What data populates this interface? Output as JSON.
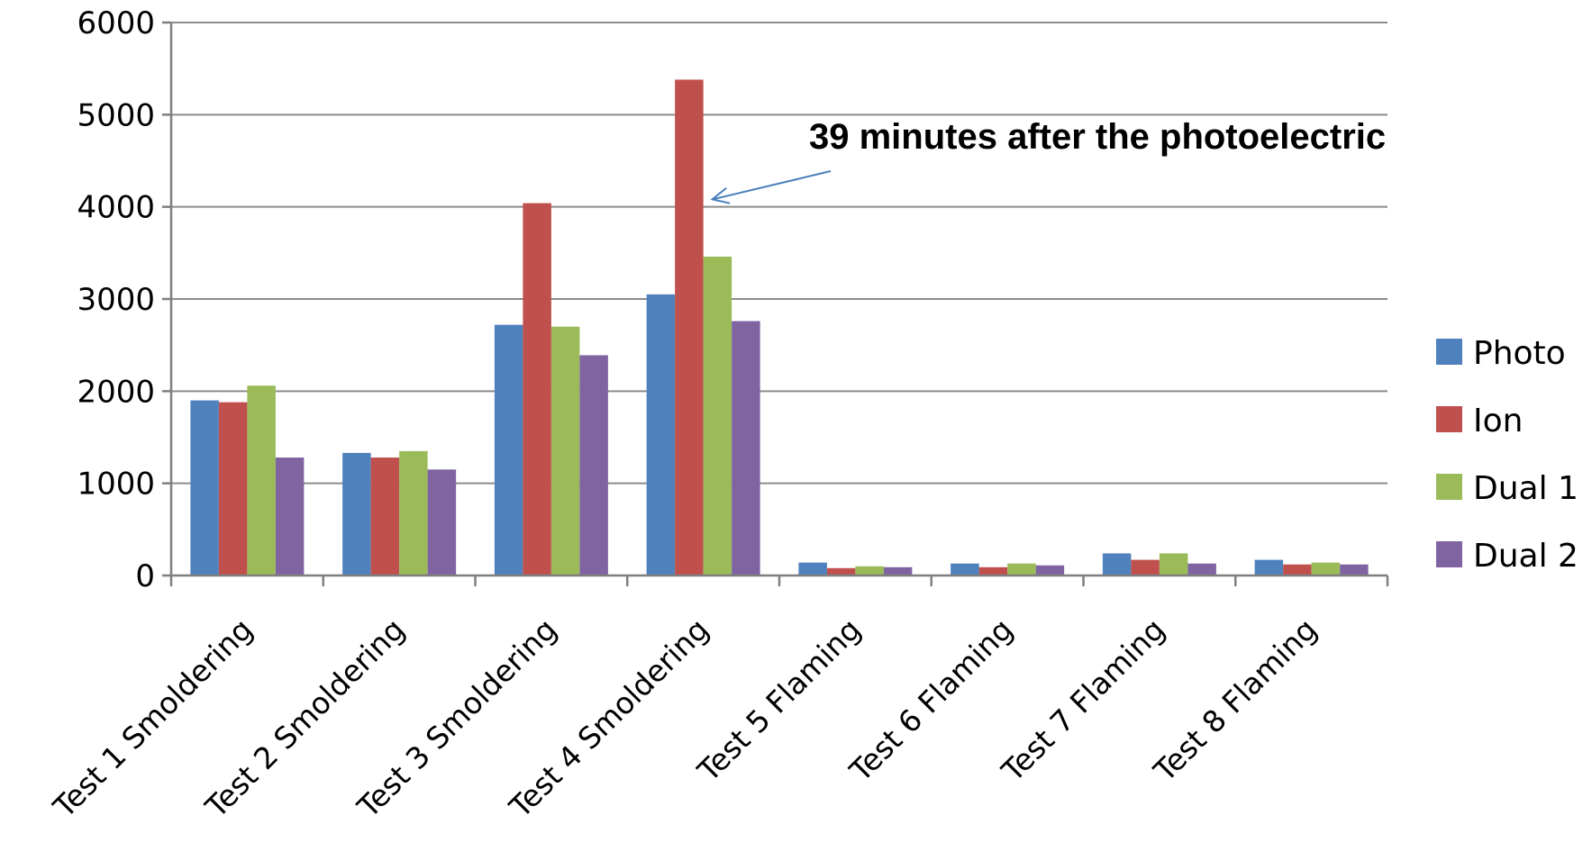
{
  "chart_data": {
    "type": "bar",
    "categories": [
      "Test 1 Smoldering",
      "Test 2 Smoldering",
      "Test 3 Smoldering",
      "Test 4 Smoldering",
      "Test 5 Flaming",
      "Test 6 Flaming",
      "Test 7 Flaming",
      "Test 8 Flaming"
    ],
    "series": [
      {
        "name": "Photo",
        "color": "#4f81bd",
        "values": [
          1900,
          1330,
          2720,
          3050,
          140,
          130,
          240,
          170
        ]
      },
      {
        "name": "Ion",
        "color": "#c0504d",
        "values": [
          1880,
          1280,
          4040,
          5380,
          80,
          90,
          170,
          120
        ]
      },
      {
        "name": "Dual 1",
        "color": "#9bbb59",
        "values": [
          2060,
          1350,
          2700,
          3460,
          100,
          130,
          240,
          140
        ]
      },
      {
        "name": "Dual 2",
        "color": "#8064a2",
        "values": [
          1280,
          1150,
          2390,
          2760,
          90,
          110,
          130,
          120
        ]
      }
    ],
    "ylim": [
      0,
      6000
    ],
    "yticks": [
      0,
      1000,
      2000,
      3000,
      4000,
      5000,
      6000
    ],
    "grid": true,
    "legend": "right",
    "annotation": {
      "text": "39 minutes after the photoelectric",
      "category": "Test 4 Smoldering",
      "series": "Ion"
    }
  }
}
